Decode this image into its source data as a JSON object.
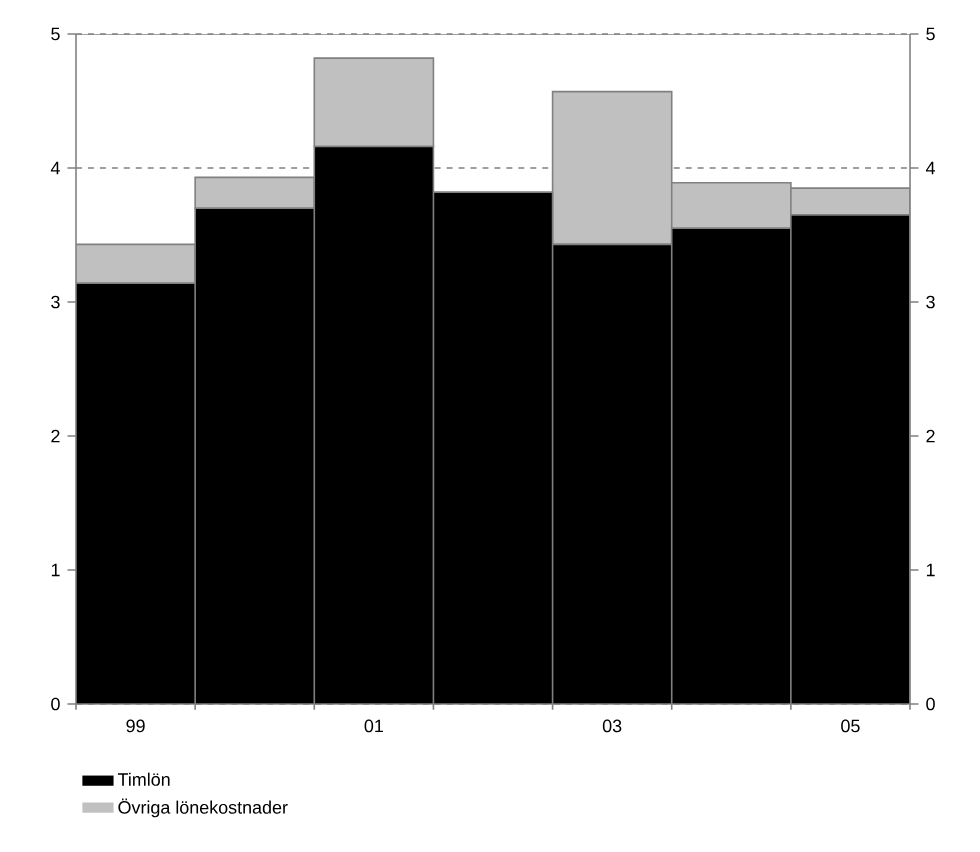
{
  "chart_data": {
    "type": "bar",
    "stacked": true,
    "categories": [
      "99",
      null,
      "01",
      null,
      "03",
      null,
      "05"
    ],
    "series": [
      {
        "name": "Timlön",
        "color": "#000000",
        "values": [
          3.14,
          3.7,
          4.16,
          3.82,
          3.43,
          3.55,
          3.65
        ]
      },
      {
        "name": "Övriga lönekostnader",
        "color": "#c0c0c0",
        "values": [
          0.29,
          0.23,
          0.66,
          0,
          1.14,
          0.34,
          0.2
        ]
      }
    ],
    "ylim": [
      0,
      5
    ],
    "yticks": [
      0,
      1,
      2,
      3,
      4,
      5
    ],
    "y2lim": [
      0,
      5
    ],
    "y2ticks": [
      0,
      1,
      2,
      3,
      4,
      5
    ],
    "grid": "y",
    "line_style": "dashed",
    "legend": "bottom left"
  }
}
